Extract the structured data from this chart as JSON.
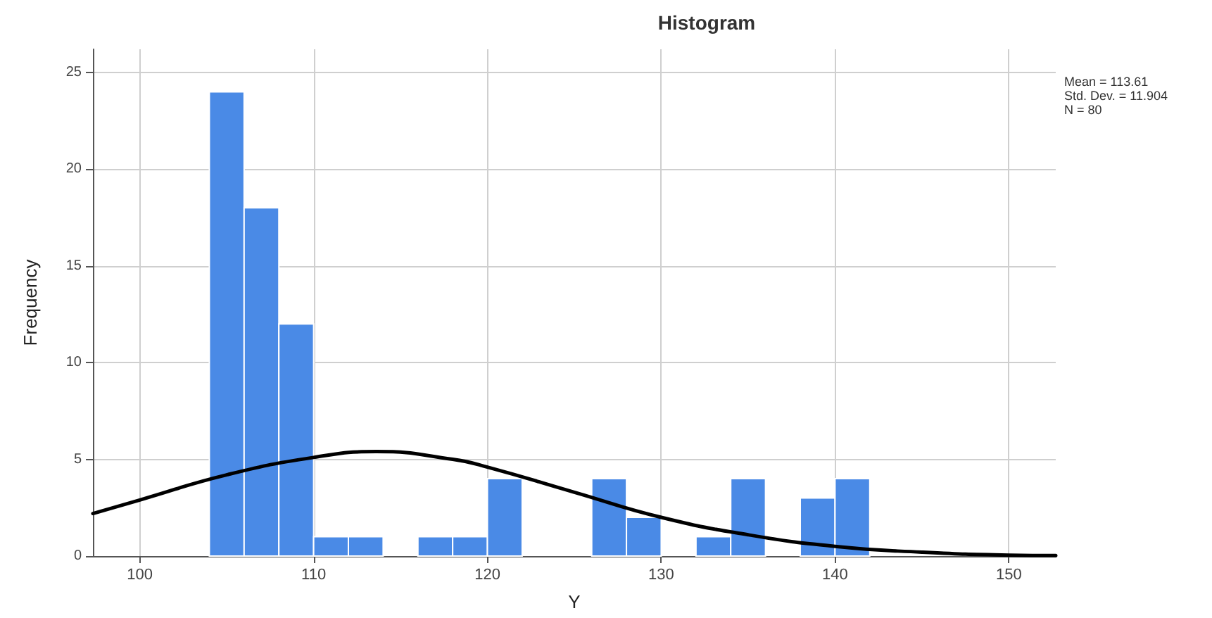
{
  "chart_data": {
    "type": "histogram",
    "title": "Histogram",
    "xlabel": "Y",
    "ylabel": "Frequency",
    "bins": [
      104,
      106,
      108,
      110,
      112,
      114,
      116,
      118,
      120,
      122,
      124,
      126,
      128,
      130,
      132,
      134,
      136,
      138,
      140,
      142
    ],
    "values": [
      24,
      18,
      12,
      1,
      1,
      0,
      1,
      1,
      4,
      0,
      0,
      4,
      2,
      0,
      1,
      4,
      0,
      3,
      4
    ],
    "color": "#4a8ae6",
    "series": [
      {
        "type": "line",
        "color": "#000000",
        "x": [
          97.3,
          100,
          105,
          110,
          113.6,
          118,
          120,
          125,
          130,
          135,
          140,
          145,
          150,
          152.7
        ],
        "values": [
          2.2,
          2.9,
          4.2,
          5.1,
          5.4,
          5.0,
          4.6,
          3.3,
          2.0,
          1.1,
          0.5,
          0.2,
          0.05,
          0.03
        ]
      }
    ],
    "marker": "none",
    "xlim": [
      97.3,
      152.7
    ],
    "xticks": [
      100,
      110,
      120,
      130,
      140,
      150
    ],
    "ylim": [
      0,
      26.2
    ],
    "yticks": [
      0,
      5,
      10,
      15,
      20,
      25
    ],
    "grid": true,
    "annotations": [
      "Mean = 113.61",
      "Std. Dev. = 11.904",
      "N = 80"
    ]
  }
}
